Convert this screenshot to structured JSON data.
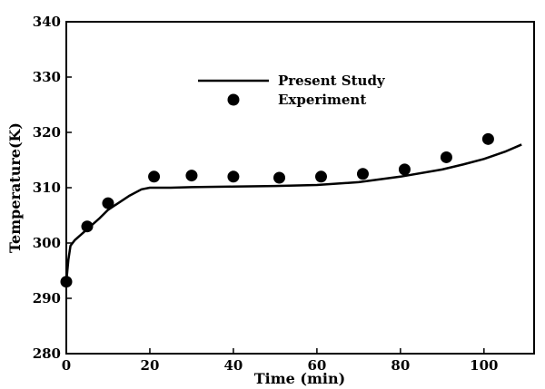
{
  "chart_data": {
    "type": "line",
    "xlabel": "Time (min)",
    "ylabel": "Temperature(K)",
    "xlim": [
      0,
      112
    ],
    "ylim": [
      280,
      340
    ],
    "xticks": [
      0,
      20,
      40,
      60,
      80,
      100
    ],
    "yticks": [
      280,
      290,
      300,
      310,
      320,
      330,
      340
    ],
    "grid": false,
    "legend_position": "top-center",
    "series": [
      {
        "name": "Present Study",
        "kind": "line",
        "color": "#000000",
        "x": [
          0,
          0.5,
          1,
          2,
          5,
          8,
          10,
          15,
          18,
          20,
          25,
          30,
          40,
          50,
          60,
          70,
          80,
          90,
          95,
          100,
          105,
          109
        ],
        "y": [
          293,
          297,
          299.5,
          300.5,
          302.5,
          304.5,
          306,
          308.5,
          309.7,
          310,
          310,
          310.1,
          310.2,
          310.3,
          310.5,
          311,
          312,
          313.3,
          314.2,
          315.2,
          316.5,
          317.8
        ]
      },
      {
        "name": "Experiment",
        "kind": "scatter",
        "color": "#000000",
        "x": [
          0,
          5,
          10,
          21,
          30,
          40,
          51,
          61,
          71,
          81,
          91,
          101
        ],
        "y": [
          293,
          303,
          307.2,
          312,
          312.2,
          312,
          311.8,
          312,
          312.5,
          313.3,
          315.5,
          318.8
        ]
      }
    ]
  }
}
